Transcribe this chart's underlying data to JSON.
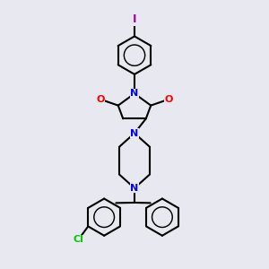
{
  "bg_color": "#e8e8f0",
  "line_color": "#000000",
  "bond_width": 1.5,
  "atom_colors": {
    "N": "#0000ff",
    "O": "#ff0000",
    "Cl": "#00cc00",
    "I": "#aa00aa"
  },
  "font_size": 8,
  "fig_width": 3.0,
  "fig_height": 3.0
}
